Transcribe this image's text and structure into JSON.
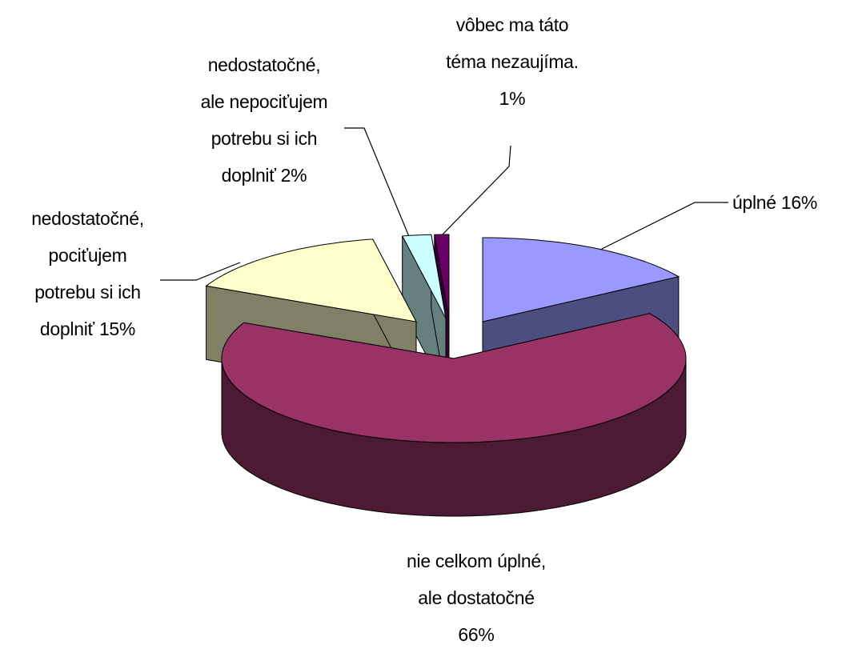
{
  "chart_data": {
    "type": "pie",
    "categories": [
      "úplné",
      "nie celkom úplné, ale dostatočné",
      "nedostatočné, pociťujem potrebu si ich doplniť",
      "nedostatočné, ale nepociťujem potrebu si ich doplniť",
      "vôbec ma táto téma nezaujíma."
    ],
    "values": [
      16,
      66,
      15,
      2,
      1
    ],
    "value_labels": [
      "16%",
      "66%",
      "15%",
      "2%",
      "1%"
    ],
    "colors": [
      "#9999ff",
      "#993366",
      "#ffffcc",
      "#ccffff",
      "#660066"
    ],
    "side_colors": [
      "#4d4d80",
      "#4d1a33",
      "#808066",
      "#668080",
      "#330033"
    ]
  }
}
